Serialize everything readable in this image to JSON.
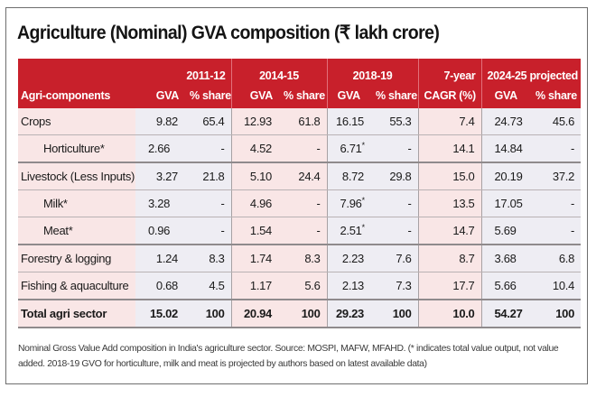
{
  "title": "Agriculture (Nominal) GVA composition (₹ lakh crore)",
  "table": {
    "header": {
      "label_col": "Agri-components",
      "groups": [
        {
          "period": "2011-12",
          "sub1": "GVA",
          "sub2": "% share"
        },
        {
          "period": "2014-15",
          "sub1": "GVA",
          "sub2": "% share"
        },
        {
          "period": "2018-19",
          "sub1": "GVA",
          "sub2": "% share"
        },
        {
          "line1": "7-year",
          "line2": "CAGR (%)"
        },
        {
          "period": "2024-25 projected",
          "sub1": "GVA",
          "sub2": "% share"
        }
      ]
    },
    "rows": [
      {
        "label": "Crops",
        "gva_2011": "9.82",
        "share_2011": "65.4",
        "gva_2014": "12.93",
        "share_2014": "61.8",
        "gva_2018": "16.15",
        "share_2018": "55.3",
        "cagr": "7.4",
        "gva_2024": "24.73",
        "share_2024": "45.6"
      },
      {
        "label": "Horticulture*",
        "gva_2011": "2.66",
        "share_2011": "-",
        "gva_2014": "4.52",
        "share_2014": "-",
        "gva_2018": "6.71",
        "gva_2018_mark": "*",
        "share_2018": "-",
        "cagr": "14.1",
        "gva_2024": "14.84",
        "share_2024": "-"
      },
      {
        "label": "Livestock (Less Inputs)",
        "gva_2011": "3.27",
        "share_2011": "21.8",
        "gva_2014": "5.10",
        "share_2014": "24.4",
        "gva_2018": "8.72",
        "share_2018": "29.8",
        "cagr": "15.0",
        "gva_2024": "20.19",
        "share_2024": "37.2"
      },
      {
        "label": "Milk*",
        "gva_2011": "3.28",
        "share_2011": "-",
        "gva_2014": "4.96",
        "share_2014": "-",
        "gva_2018": "7.96",
        "gva_2018_mark": "*",
        "share_2018": "-",
        "cagr": "13.5",
        "gva_2024": "17.05",
        "share_2024": "-"
      },
      {
        "label": "Meat*",
        "gva_2011": "0.96",
        "share_2011": "-",
        "gva_2014": "1.54",
        "share_2014": "-",
        "gva_2018": "2.51",
        "gva_2018_mark": "*",
        "share_2018": "-",
        "cagr": "14.7",
        "gva_2024": "5.69",
        "share_2024": "-"
      },
      {
        "label": "Forestry & logging",
        "gva_2011": "1.24",
        "share_2011": "8.3",
        "gva_2014": "1.74",
        "share_2014": "8.3",
        "gva_2018": "2.23",
        "share_2018": "7.6",
        "cagr": "8.7",
        "gva_2024": "3.68",
        "share_2024": "6.8"
      },
      {
        "label": "Fishing & aquaculture",
        "gva_2011": "0.68",
        "share_2011": "4.5",
        "gva_2014": "1.17",
        "share_2014": "5.6",
        "gva_2018": "2.13",
        "share_2018": "7.3",
        "cagr": "17.7",
        "gva_2024": "5.66",
        "share_2024": "10.4"
      },
      {
        "label": "Total agri sector",
        "gva_2011": "15.02",
        "share_2011": "100",
        "gva_2014": "20.94",
        "share_2014": "100",
        "gva_2018": "29.23",
        "share_2018": "100",
        "cagr": "10.0",
        "gva_2024": "54.27",
        "share_2024": "100"
      }
    ]
  },
  "footnote": "Nominal Gross Value Add composition in India's agriculture sector. Source: MOSPI, MAFW, MFAHD. (* indicates total value output, not value added. 2018-19 GVO for horticulture, milk and meat is projected by authors based on latest available data)",
  "colors": {
    "header_red": "#c8202b",
    "pink_column": "#f9e6e6",
    "lavender_column": "#eeedf3"
  }
}
